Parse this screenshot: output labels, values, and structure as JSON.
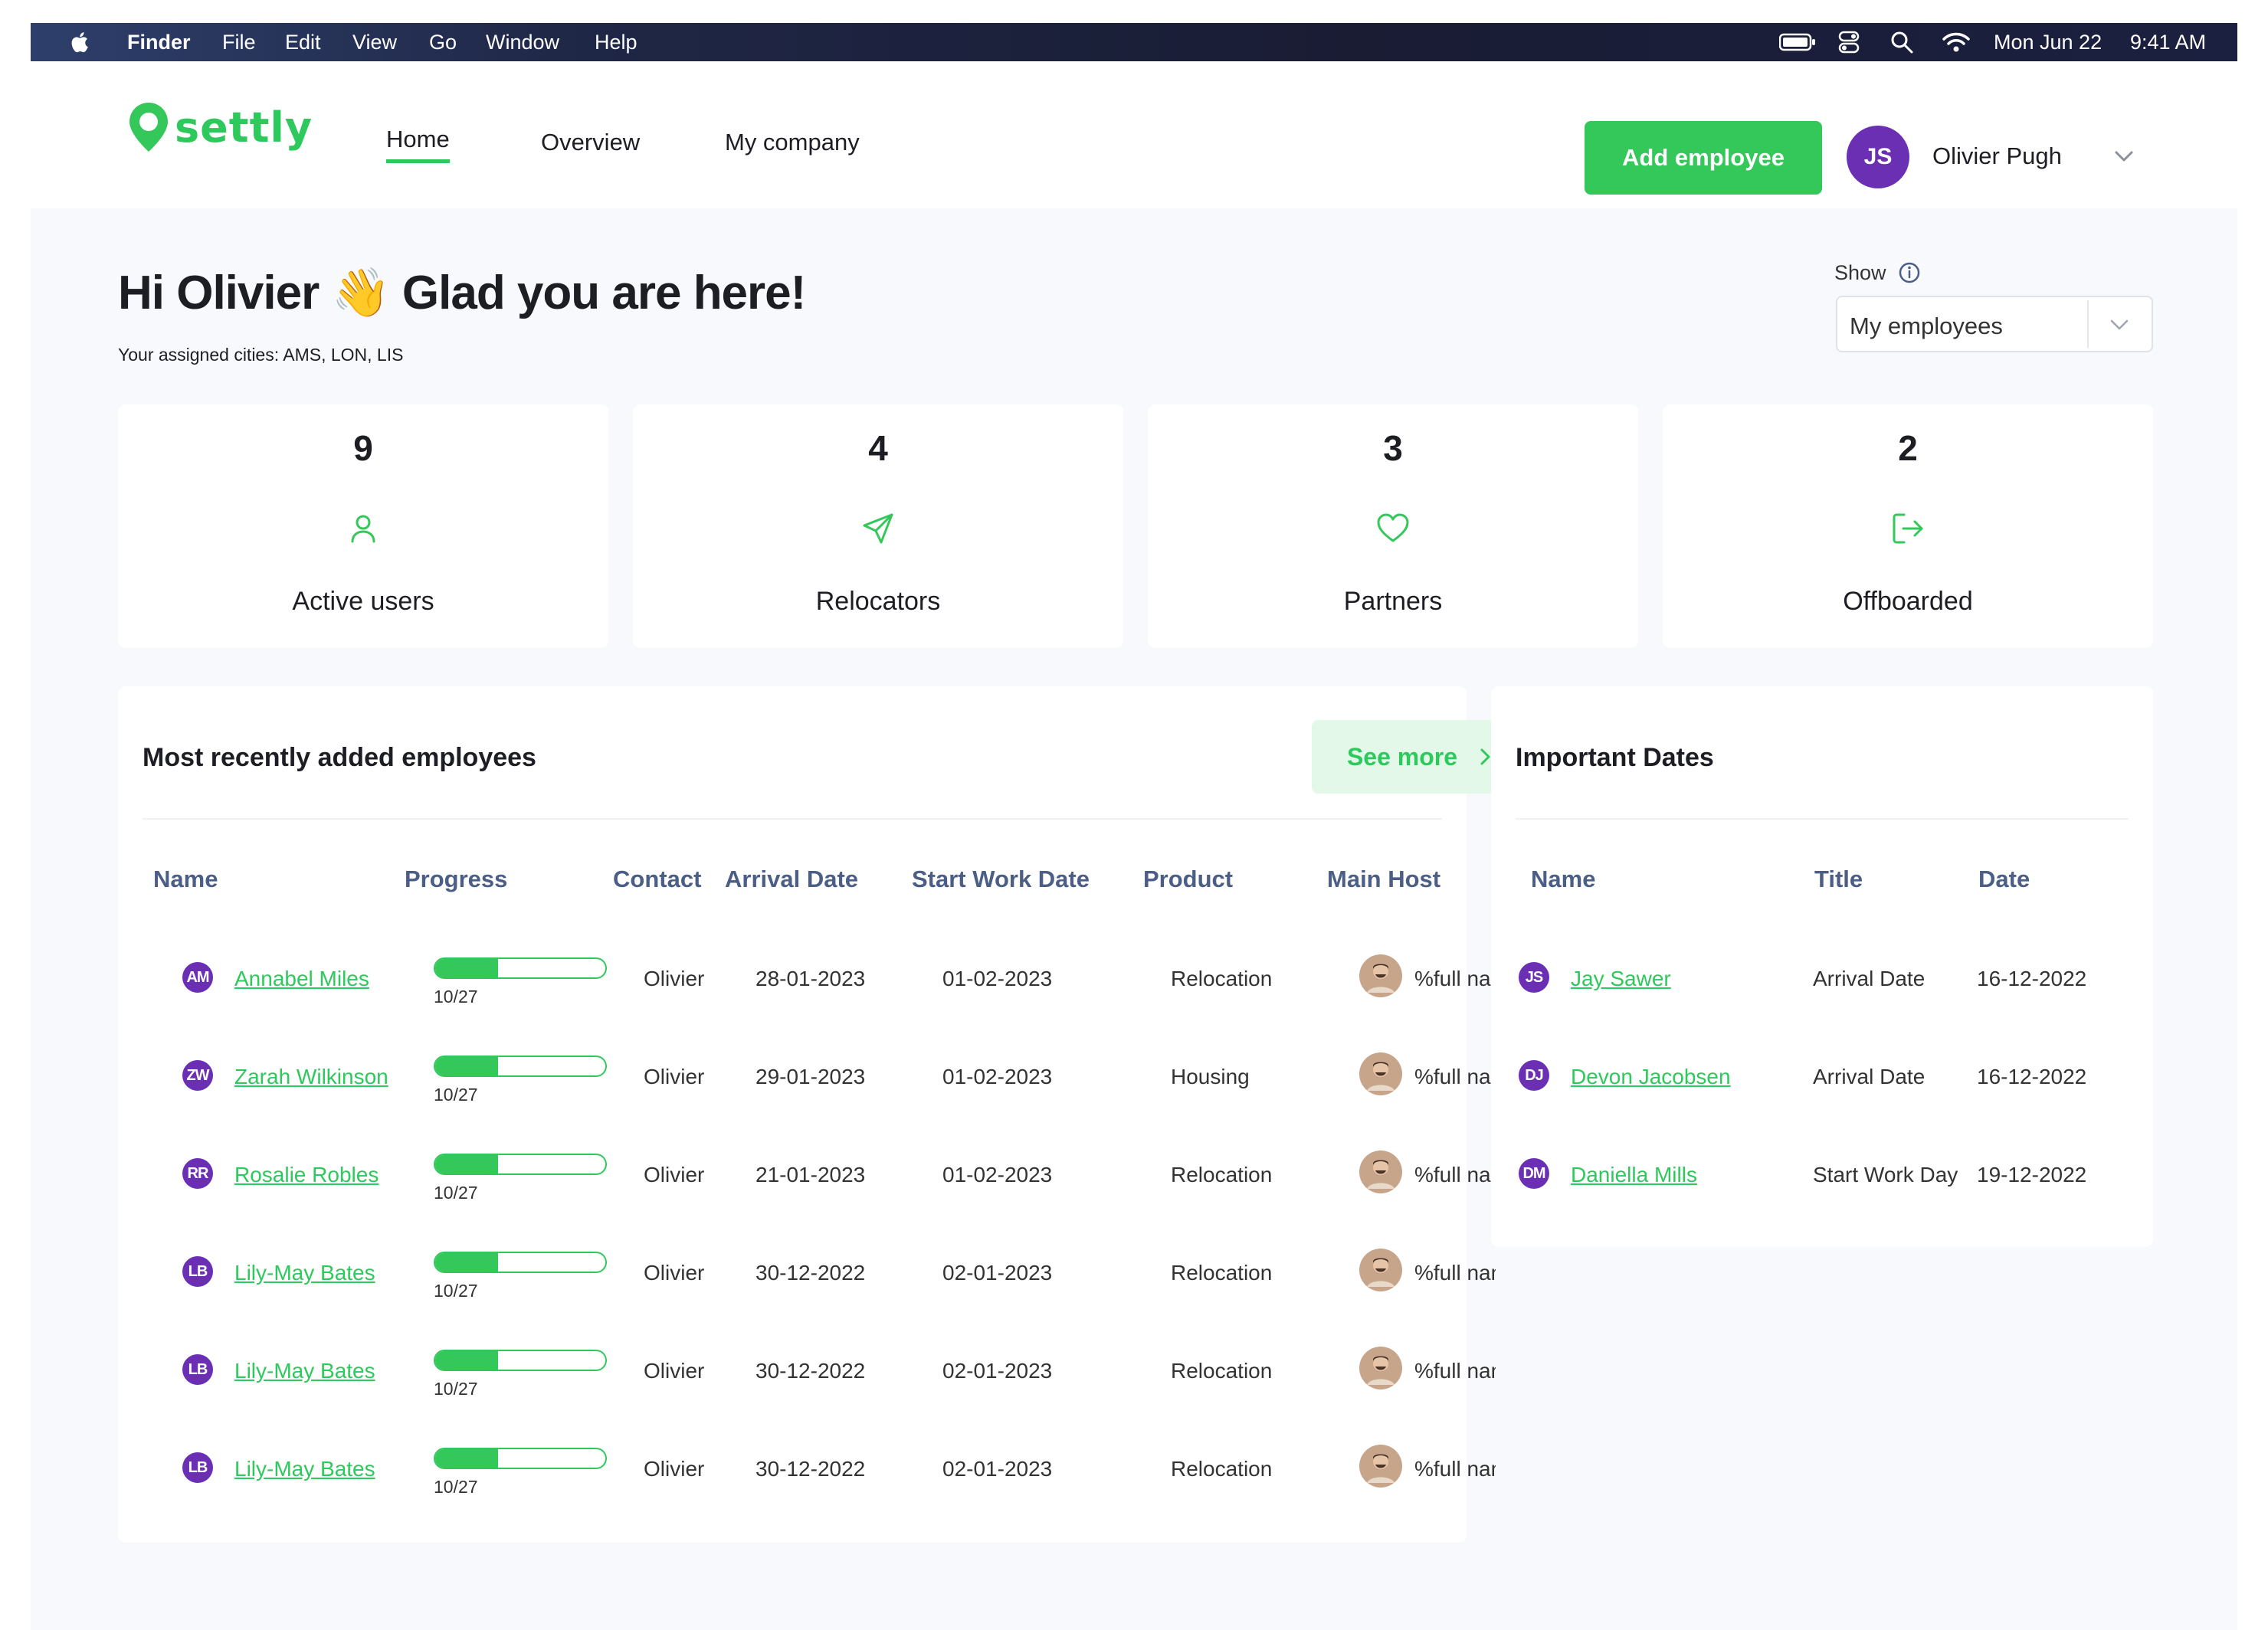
{
  "menubar": {
    "app": "Finder",
    "items": [
      "File",
      "Edit",
      "View",
      "Go",
      "Window",
      "Help"
    ],
    "date": "Mon Jun 22",
    "time": "9:41 AM"
  },
  "brand": {
    "name": "Settly",
    "logo_text": "settly",
    "accent": "#34c759",
    "avatar_color": "#6b2fb3"
  },
  "nav": {
    "home": "Home",
    "overview": "Overview",
    "company": "My company"
  },
  "header": {
    "add_employee": "Add employee",
    "user_initials": "JS",
    "user_name": "Olivier Pugh"
  },
  "greeting": {
    "prefix": "Hi Olivier",
    "emoji": "👋",
    "suffix": "Glad you are here!",
    "cities": "Your assigned cities: AMS, LON, LIS"
  },
  "show": {
    "label": "Show",
    "value": "My employees"
  },
  "stats": [
    {
      "value": "9",
      "label": "Active users",
      "icon": "user-icon"
    },
    {
      "value": "4",
      "label": "Relocators",
      "icon": "send-icon"
    },
    {
      "value": "3",
      "label": "Partners",
      "icon": "heart-icon"
    },
    {
      "value": "2",
      "label": "Offboarded",
      "icon": "logout-icon"
    }
  ],
  "recent": {
    "title": "Most recently added employees",
    "see_more": "See more",
    "columns": [
      "Name",
      "Progress",
      "Contact",
      "Arrival Date",
      "Start Work Date",
      "Product",
      "Main Host"
    ],
    "rows": [
      {
        "initials": "AM",
        "name": "Annabel Miles",
        "progress": 0.37,
        "progress_text": "10/27",
        "contact": "Olivier",
        "arrival": "28-01-2023",
        "start": "01-02-2023",
        "product": "Relocation",
        "host": "%full name%"
      },
      {
        "initials": "ZW",
        "name": "Zarah Wilkinson",
        "progress": 0.37,
        "progress_text": "10/27",
        "contact": "Olivier",
        "arrival": "29-01-2023",
        "start": "01-02-2023",
        "product": "Housing",
        "host": "%full name%"
      },
      {
        "initials": "RR",
        "name": "Rosalie Robles",
        "progress": 0.37,
        "progress_text": "10/27",
        "contact": "Olivier",
        "arrival": "21-01-2023",
        "start": "01-02-2023",
        "product": "Relocation",
        "host": "%full name%"
      },
      {
        "initials": "LB",
        "name": "Lily-May Bates",
        "progress": 0.37,
        "progress_text": "10/27",
        "contact": "Olivier",
        "arrival": "30-12-2022",
        "start": "02-01-2023",
        "product": "Relocation",
        "host": "%full name%"
      },
      {
        "initials": "LB",
        "name": "Lily-May Bates",
        "progress": 0.37,
        "progress_text": "10/27",
        "contact": "Olivier",
        "arrival": "30-12-2022",
        "start": "02-01-2023",
        "product": "Relocation",
        "host": "%full name%"
      },
      {
        "initials": "LB",
        "name": "Lily-May Bates",
        "progress": 0.37,
        "progress_text": "10/27",
        "contact": "Olivier",
        "arrival": "30-12-2022",
        "start": "02-01-2023",
        "product": "Relocation",
        "host": "%full name%"
      }
    ]
  },
  "dates": {
    "title": "Important Dates",
    "columns": [
      "Name",
      "Title",
      "Date"
    ],
    "rows": [
      {
        "initials": "JS",
        "name": "Jay Sawer",
        "title": "Arrival Date",
        "date": "16-12-2022"
      },
      {
        "initials": "DJ",
        "name": "Devon Jacobsen",
        "title": "Arrival Date",
        "date": "16-12-2022"
      },
      {
        "initials": "DM",
        "name": "Daniella Mills",
        "title": "Start Work Day",
        "date": "19-12-2022"
      }
    ]
  }
}
